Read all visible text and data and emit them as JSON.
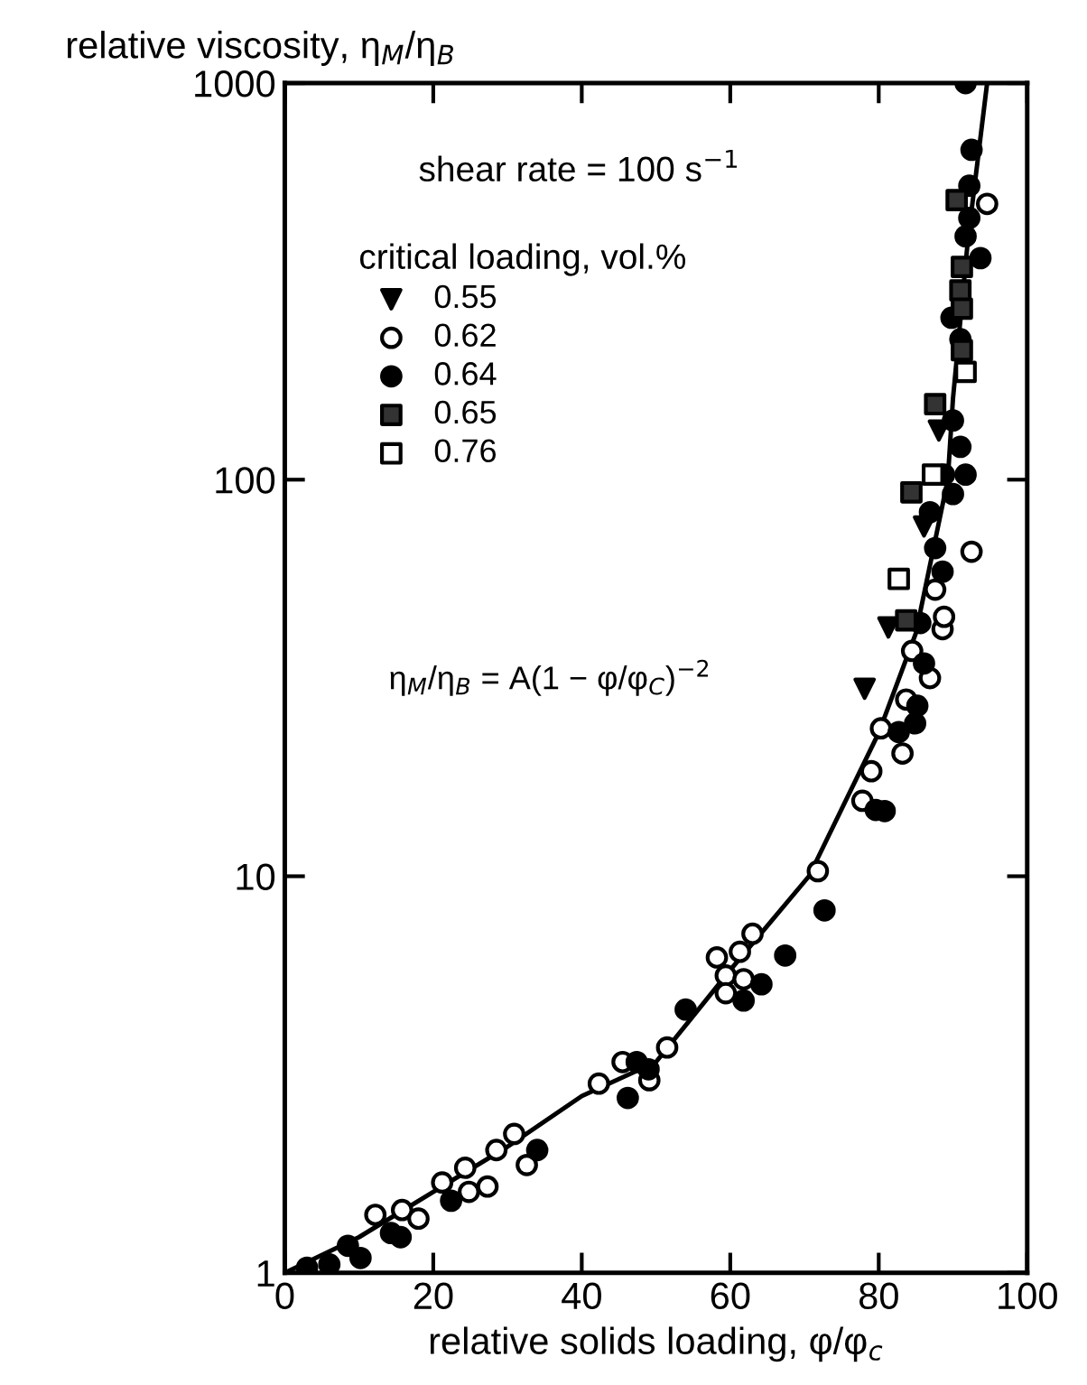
{
  "chart_data": {
    "type": "scatter",
    "xlabel": "relative solids loading, φ/φ$_{c}$",
    "ylabel": "relative viscosity, η$_{M}$/η$_{B}$",
    "legend_title": "critical loading, vol.%",
    "legend": "top left",
    "log": "y",
    "xlim": [
      0,
      100
    ],
    "xticks": [
      0,
      20,
      40,
      60,
      80,
      100
    ],
    "ylim": [
      1,
      1000
    ],
    "yticks": [
      1,
      10,
      100,
      1000
    ],
    "grid": false,
    "annotations": [
      "shear rate = 100 s$^{−1}$",
      "η$_{M}$/η$_{B}$ = A(1 − φ/φ$_{C}$)$^{−2}$"
    ],
    "series": [
      {
        "name": "0.55",
        "color": "#000000",
        "marker": "triangle",
        "x": [
          78.1,
          81.3,
          86.1,
          88.1
        ],
        "values": [
          29.7,
          42.4,
          76.2,
          133
        ]
      },
      {
        "name": "0.62",
        "color": "#ffffff",
        "marker": "circle",
        "x": [
          12.2,
          15.8,
          18,
          21.2,
          24.3,
          27.3,
          24.8,
          28.5,
          30.9,
          32.6,
          42.3,
          45.5,
          51.5,
          49.1,
          58.2,
          61.3,
          59.4,
          61.8,
          59.4,
          63,
          71.8,
          77.8,
          79,
          80.3,
          83.2,
          83.7,
          86.9,
          84.5,
          88.6,
          88.8,
          87.6,
          92.5,
          94.6
        ],
        "values": [
          1.4,
          1.44,
          1.37,
          1.69,
          1.84,
          1.65,
          1.6,
          2.04,
          2.24,
          1.87,
          3.0,
          3.4,
          3.7,
          3.06,
          6.24,
          6.45,
          5.62,
          5.5,
          5.07,
          7.16,
          10.3,
          15.5,
          18.4,
          23.6,
          20.4,
          27.9,
          31.6,
          37,
          42,
          45.1,
          52.8,
          65.8,
          496
        ]
      },
      {
        "name": "0.64",
        "color": "#000000",
        "marker": "circle",
        "x": [
          3,
          6,
          8.5,
          10.2,
          14.3,
          15.6,
          22.4,
          34,
          47.4,
          49,
          46.2,
          54,
          64.2,
          61.8,
          67.4,
          72.7,
          79.6,
          80.8,
          82.7,
          84.9,
          85.2,
          86.1,
          85.6,
          88.6,
          87.6,
          86.9,
          90,
          91.7,
          88.8,
          91,
          90,
          91.7,
          92.5,
          92.2,
          92.2,
          91.7,
          93.7,
          89.8,
          91
        ],
        "values": [
          1.03,
          1.05,
          1.17,
          1.09,
          1.26,
          1.23,
          1.52,
          2.04,
          3.4,
          3.26,
          2.76,
          4.61,
          5.34,
          4.86,
          6.31,
          8.2,
          14.7,
          14.6,
          23.1,
          24.3,
          26.9,
          34.4,
          43.5,
          58.6,
          67.2,
          82.8,
          92,
          103,
          103,
          121,
          141,
          1000,
          679,
          551,
          457,
          411,
          362,
          256,
          226
        ]
      },
      {
        "name": "0.65",
        "color": "#333333",
        "marker": "square",
        "x": [
          83.7,
          84.4,
          87.6,
          90.5,
          91.2,
          91,
          91.2,
          91.2
        ],
        "values": [
          44.2,
          92.9,
          155,
          507,
          344,
          300,
          270,
          212
        ]
      },
      {
        "name": "0.76",
        "color": "#ffffff",
        "marker": "square",
        "x": [
          82.7,
          87.3,
          91.7
        ],
        "values": [
          56.2,
          103,
          187
        ]
      },
      {
        "type": "line",
        "color": "#000000",
        "marker": "none",
        "line_style": "solid",
        "x": [
          0,
          10,
          20,
          30,
          40,
          50,
          60,
          70.6,
          80,
          85,
          89.3,
          90,
          92,
          94.6
        ],
        "values": [
          1,
          1.23,
          1.6,
          2.08,
          2.79,
          3.4,
          5.8,
          10,
          23,
          41,
          100,
          160,
          400,
          1000
        ]
      }
    ]
  }
}
